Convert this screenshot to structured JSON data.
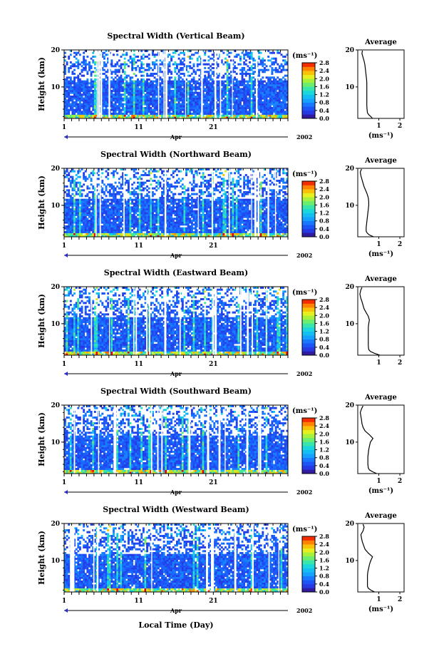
{
  "figure": {
    "x_axis_label": "Local Time (Day)",
    "month_label": "Apr",
    "year_label": "2002"
  },
  "chart_data": [
    {
      "type": "heatmap",
      "title": "Spectral Width (Vertical Beam)",
      "ylabel": "Height (km)",
      "ylim": [
        1.5,
        20
      ],
      "y_ticks": [
        "20",
        "10"
      ],
      "x_ticks": [
        "1",
        "11",
        "21"
      ],
      "xlim": [
        1,
        31
      ],
      "colorbar": {
        "unit": "(ms⁻¹)",
        "ticks": [
          "2.8",
          "2.4",
          "2.0",
          "1.6",
          "1.2",
          "0.8",
          "0.4",
          "0.0"
        ],
        "range": [
          0,
          2.8
        ]
      },
      "average_profile": {
        "title": "Average",
        "xlabel": "(ms⁻¹)",
        "x_ticks": [
          "1",
          "2"
        ],
        "xlim": [
          0,
          2.2
        ],
        "y_ticks": [
          "20",
          "10"
        ],
        "height": [
          1.5,
          2.0,
          2.5,
          3.0,
          4.0,
          5.0,
          6.0,
          7.0,
          8.0,
          9.0,
          10.0,
          11.0,
          12.0,
          13.0,
          14.0,
          15.0,
          16.0,
          17.0,
          18.0,
          19.0,
          19.8
        ],
        "width": [
          0.7,
          0.62,
          0.52,
          0.46,
          0.44,
          0.43,
          0.43,
          0.43,
          0.43,
          0.43,
          0.43,
          0.43,
          0.42,
          0.4,
          0.38,
          0.36,
          0.34,
          0.3,
          0.25,
          0.2,
          0.22
        ]
      }
    },
    {
      "type": "heatmap",
      "title": "Spectral Width (Northward Beam)",
      "ylabel": "Height (km)",
      "ylim": [
        1.5,
        20
      ],
      "y_ticks": [
        "20",
        "10"
      ],
      "x_ticks": [
        "1",
        "11",
        "21"
      ],
      "xlim": [
        1,
        31
      ],
      "colorbar": {
        "unit": "(ms⁻¹)",
        "ticks": [
          "2.8",
          "2.4",
          "2.0",
          "1.6",
          "1.2",
          "0.8",
          "0.4",
          "0.0"
        ],
        "range": [
          0,
          2.8
        ]
      },
      "average_profile": {
        "title": "Average",
        "xlabel": "(ms⁻¹)",
        "x_ticks": [
          "1",
          "2"
        ],
        "xlim": [
          0,
          2.2
        ],
        "y_ticks": [
          "20",
          "10"
        ],
        "height": [
          1.5,
          2.0,
          2.5,
          3.0,
          4.0,
          5.0,
          6.0,
          7.0,
          8.0,
          9.0,
          10.0,
          11.0,
          12.0,
          13.0,
          14.0,
          15.0,
          16.0,
          17.0,
          18.0,
          19.0,
          19.8
        ],
        "width": [
          0.75,
          0.55,
          0.45,
          0.4,
          0.4,
          0.42,
          0.44,
          0.46,
          0.48,
          0.5,
          0.52,
          0.52,
          0.5,
          0.45,
          0.38,
          0.3,
          0.25,
          0.2,
          0.15,
          0.12,
          0.18
        ]
      }
    },
    {
      "type": "heatmap",
      "title": "Spectral Width (Eastward Beam)",
      "ylabel": "Height (km)",
      "ylim": [
        1.5,
        20
      ],
      "y_ticks": [
        "20",
        "10"
      ],
      "x_ticks": [
        "1",
        "11",
        "21"
      ],
      "xlim": [
        1,
        31
      ],
      "colorbar": {
        "unit": "(ms⁻¹)",
        "ticks": [
          "2.8",
          "2.4",
          "2.0",
          "1.6",
          "1.2",
          "0.8",
          "0.4",
          "0.0"
        ],
        "range": [
          0,
          2.8
        ]
      },
      "average_profile": {
        "title": "Average",
        "xlabel": "",
        "x_ticks": [
          "1",
          "2"
        ],
        "xlim": [
          0,
          2.2
        ],
        "y_ticks": [
          "20",
          "10"
        ],
        "height": [
          1.5,
          2.0,
          2.5,
          3.0,
          4.0,
          5.0,
          6.0,
          7.0,
          8.0,
          9.0,
          10.0,
          11.0,
          12.0,
          13.0,
          14.0,
          15.0,
          16.0,
          17.0,
          18.0,
          19.0,
          19.8
        ],
        "width": [
          1.05,
          0.8,
          0.6,
          0.52,
          0.5,
          0.5,
          0.5,
          0.5,
          0.5,
          0.5,
          0.52,
          0.55,
          0.5,
          0.4,
          0.3,
          0.25,
          0.2,
          0.14,
          0.1,
          0.14,
          0.2
        ]
      }
    },
    {
      "type": "heatmap",
      "title": "Spectral Width (Southward Beam)",
      "ylabel": "Height (km)",
      "ylim": [
        1.5,
        20
      ],
      "y_ticks": [
        "20",
        "10"
      ],
      "x_ticks": [
        "1",
        "11",
        "21"
      ],
      "xlim": [
        1,
        31
      ],
      "colorbar": {
        "unit": "(ms⁻¹)",
        "ticks": [
          "2.8",
          "2.4",
          "2.0",
          "1.6",
          "1.2",
          "0.8",
          "0.4",
          "0.0"
        ],
        "range": [
          0,
          2.8
        ]
      },
      "average_profile": {
        "title": "Average",
        "xlabel": "(ms⁻¹)",
        "x_ticks": [
          "1",
          "2"
        ],
        "xlim": [
          0,
          2.2
        ],
        "y_ticks": [
          "20",
          "10"
        ],
        "height": [
          1.5,
          2.0,
          2.5,
          3.0,
          4.0,
          5.0,
          6.0,
          7.0,
          8.0,
          9.0,
          10.0,
          11.0,
          12.0,
          13.0,
          14.0,
          15.0,
          16.0,
          17.0,
          18.0,
          19.0,
          19.8
        ],
        "width": [
          0.9,
          0.7,
          0.55,
          0.5,
          0.48,
          0.48,
          0.48,
          0.5,
          0.52,
          0.56,
          0.6,
          0.72,
          0.55,
          0.35,
          0.25,
          0.2,
          0.18,
          0.15,
          0.12,
          0.18,
          0.25
        ]
      }
    },
    {
      "type": "heatmap",
      "title": "Spectral Width (Westward Beam)",
      "ylabel": "Height (km)",
      "ylim": [
        1.5,
        20
      ],
      "y_ticks": [
        "20",
        "10"
      ],
      "x_ticks": [
        "1",
        "11",
        "21"
      ],
      "xlim": [
        1,
        31
      ],
      "colorbar": {
        "unit": "(ms⁻¹)",
        "ticks": [
          "2.8",
          "2.4",
          "2.0",
          "1.6",
          "1.2",
          "0.8",
          "0.4",
          "0.0"
        ],
        "range": [
          0,
          2.8
        ]
      },
      "average_profile": {
        "title": "Average",
        "xlabel": "(ms⁻¹)",
        "x_ticks": [
          "1",
          "2"
        ],
        "xlim": [
          0,
          2.2
        ],
        "y_ticks": [
          "20",
          "10"
        ],
        "height": [
          1.5,
          2.0,
          2.5,
          3.0,
          4.0,
          5.0,
          6.0,
          7.0,
          8.0,
          9.0,
          10.0,
          11.0,
          12.0,
          13.0,
          14.0,
          15.0,
          16.0,
          17.0,
          18.0,
          19.0,
          19.8
        ],
        "width": [
          0.8,
          0.62,
          0.5,
          0.46,
          0.46,
          0.46,
          0.46,
          0.48,
          0.52,
          0.56,
          0.62,
          0.7,
          0.5,
          0.35,
          0.28,
          0.22,
          0.18,
          0.15,
          0.25,
          0.3,
          0.25
        ]
      }
    }
  ]
}
